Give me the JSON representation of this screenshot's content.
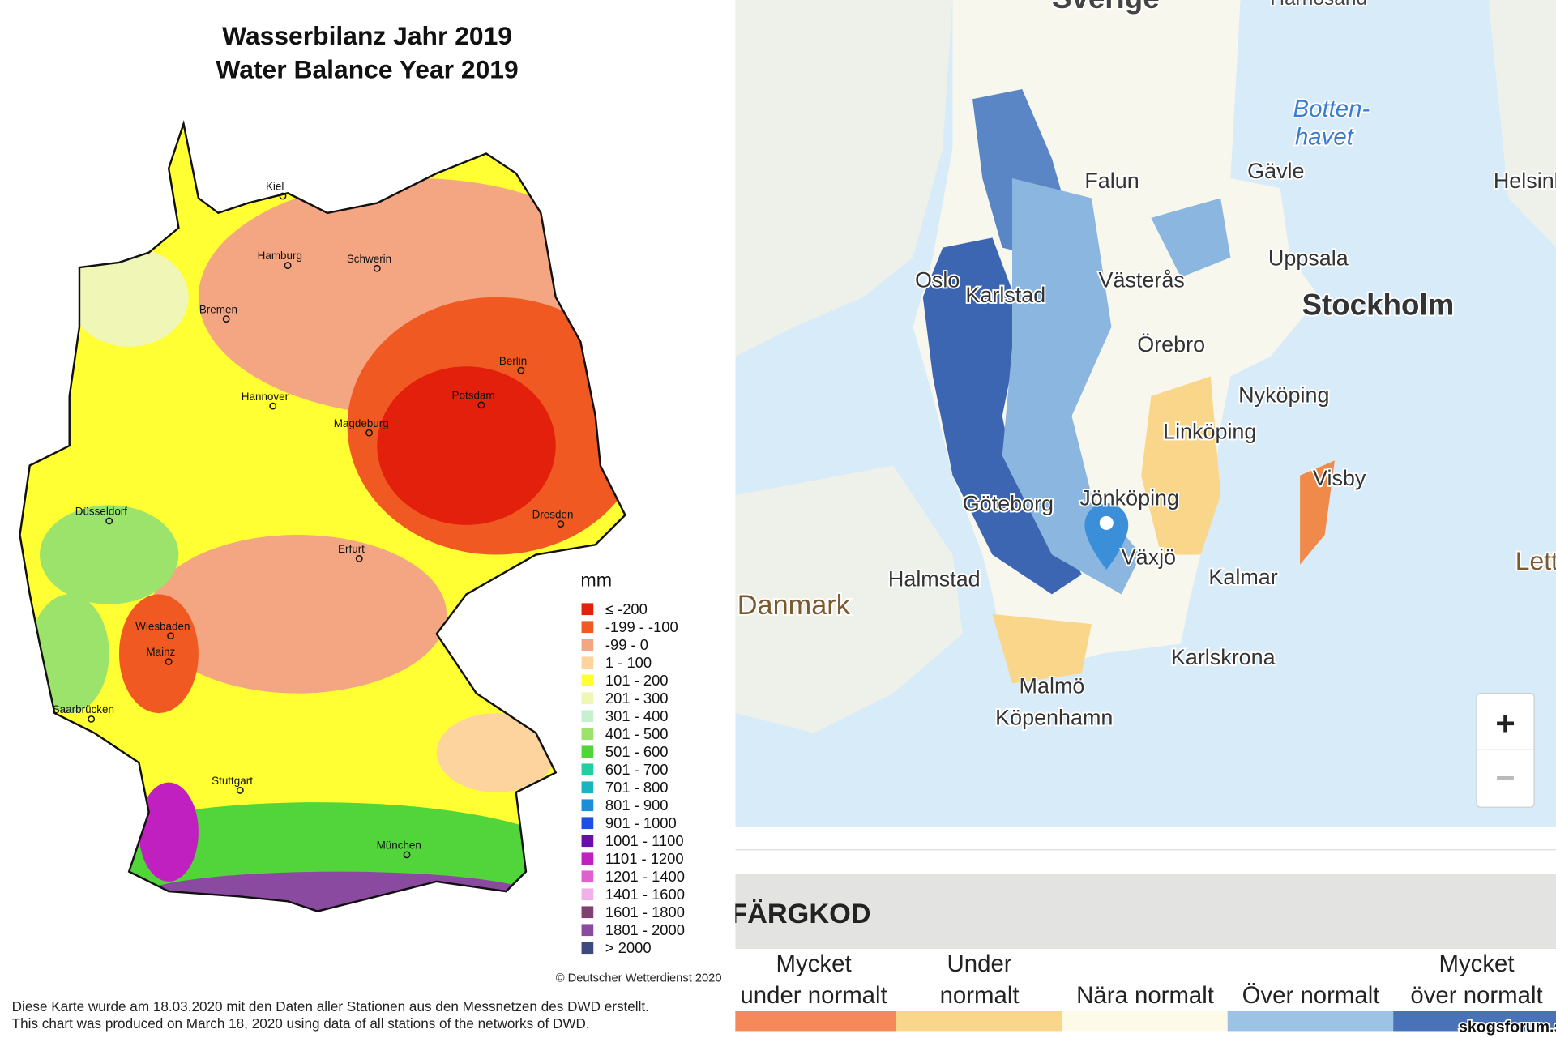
{
  "germany_map": {
    "title": [
      "Wasserbilanz Jahr 2019",
      "Water Balance Year 2019"
    ],
    "cities": [
      "Kiel",
      "Hamburg",
      "Schwerin",
      "Bremen",
      "Berlin",
      "Potsdam",
      "Hannover",
      "Magdeburg",
      "Düsseldorf",
      "Dresden",
      "Erfurt",
      "Wiesbaden",
      "Mainz",
      "Saarbrücken",
      "Stuttgart",
      "München"
    ],
    "legend": {
      "title": "mm",
      "items": [
        {
          "label": "≤ -200",
          "color": "#e3200b"
        },
        {
          "label": "-199 - -100",
          "color": "#f05a22"
        },
        {
          "label": "-99 - 0",
          "color": "#f4a582"
        },
        {
          "label": "1 - 100",
          "color": "#fdd49e"
        },
        {
          "label": "101 - 200",
          "color": "#ffff33"
        },
        {
          "label": "201 - 300",
          "color": "#f0f7b6"
        },
        {
          "label": "301 - 400",
          "color": "#c7f0d0"
        },
        {
          "label": "401 - 500",
          "color": "#9be36b"
        },
        {
          "label": "501 - 600",
          "color": "#52d43b"
        },
        {
          "label": "601 - 700",
          "color": "#20d0a0"
        },
        {
          "label": "701 - 800",
          "color": "#17b5c0"
        },
        {
          "label": "801 - 900",
          "color": "#1a8fd8"
        },
        {
          "label": "901 - 1000",
          "color": "#1d4fe0"
        },
        {
          "label": "1001 - 1100",
          "color": "#6a0dad"
        },
        {
          "label": "1101 - 1200",
          "color": "#c020c0"
        },
        {
          "label": "1201 - 1400",
          "color": "#e060d0"
        },
        {
          "label": "1401 - 1600",
          "color": "#f0b0e8"
        },
        {
          "label": "1601 - 1800",
          "color": "#804070"
        },
        {
          "label": "1801 - 2000",
          "color": "#8a4aa0"
        },
        {
          "label": "> 2000",
          "color": "#404880"
        }
      ]
    },
    "credit": "© Deutscher Wetterdienst 2020",
    "note": [
      "Diese Karte wurde am 18.03.2020 mit den Daten aller Stationen aus den Messnetzen des DWD erstellt.",
      "This chart was produced on March 18, 2020 using data of all stations of the networks of DWD."
    ]
  },
  "sweden_map": {
    "labels": [
      "Sverige",
      "Härnösand",
      "Botten-",
      "havet",
      "Falun",
      "Gävle",
      "Helsinki",
      "Oslo",
      "Karlstad",
      "Västerås",
      "Uppsala",
      "Stockholm",
      "Örebro",
      "Nyköping",
      "Linköping",
      "Visby",
      "Göteborg",
      "Jönköping",
      "Växjö",
      "Halmstad",
      "Kalmar",
      "Danmark",
      "Karlskrona",
      "Malmö",
      "Köpenhamn",
      "Lettland"
    ],
    "zoom": [
      "+",
      "−"
    ],
    "legend": {
      "title": "FÄRGKOD",
      "items": [
        {
          "lines": [
            "Mycket",
            "under normalt"
          ],
          "color": "#f5895a"
        },
        {
          "lines": [
            "Under",
            "normalt"
          ],
          "color": "#fad68a"
        },
        {
          "lines": [
            "Nära normalt"
          ],
          "color": "#fdfbe8"
        },
        {
          "lines": [
            "Över normalt"
          ],
          "color": "#9cc3e6"
        },
        {
          "lines": [
            "Mycket",
            "över normalt"
          ],
          "color": "#4a72b8"
        }
      ]
    },
    "watermark": "skogsforum.se"
  }
}
